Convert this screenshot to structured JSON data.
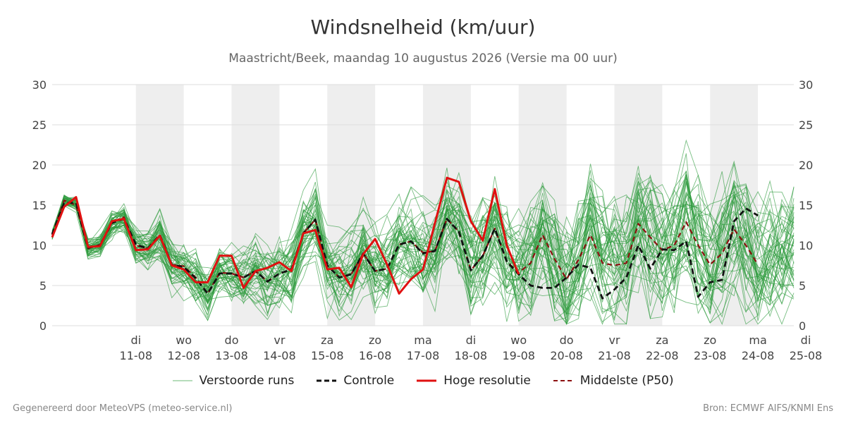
{
  "title": "Windsnelheid (km/uur)",
  "subtitle": "Maastricht/Beek, maandag 10 augustus 2026 (Versie ma 00 uur)",
  "footer_left": "Gegenereerd door MeteoVPS (meteo-service.nl)",
  "footer_right": "Bron: ECMWF AIFS/KNMI Ens",
  "legend": {
    "ensemble": "Verstoorde runs",
    "control": "Controle",
    "hires": "Hoge resolutie",
    "median": "Middelste (P50)"
  },
  "colors": {
    "ensemble": "#2e9b3e",
    "control": "#111111",
    "hires": "#e01010",
    "median": "#8b1010",
    "weekend_shade": "#eeeeee",
    "grid": "#dddddd"
  },
  "chart_data": {
    "type": "line",
    "title": "Windsnelheid (km/uur)",
    "ylim": [
      0,
      30
    ],
    "yticks": [
      0,
      5,
      10,
      15,
      20,
      25,
      30
    ],
    "x_unit": "days since 10-08-2026 00:00",
    "xlim": [
      -0.75,
      14.75
    ],
    "x_ticks": [
      {
        "day": "di",
        "date": "11-08"
      },
      {
        "day": "wo",
        "date": "12-08"
      },
      {
        "day": "do",
        "date": "13-08"
      },
      {
        "day": "vr",
        "date": "14-08"
      },
      {
        "day": "za",
        "date": "15-08"
      },
      {
        "day": "zo",
        "date": "16-08"
      },
      {
        "day": "ma",
        "date": "17-08"
      },
      {
        "day": "di",
        "date": "18-08"
      },
      {
        "day": "wo",
        "date": "19-08"
      },
      {
        "day": "do",
        "date": "20-08"
      },
      {
        "day": "vr",
        "date": "21-08"
      },
      {
        "day": "za",
        "date": "22-08"
      },
      {
        "day": "zo",
        "date": "23-08"
      },
      {
        "day": "ma",
        "date": "24-08"
      },
      {
        "day": "di",
        "date": "25-08"
      }
    ],
    "shaded_days": [
      {
        "from": "11-08",
        "to": "12-08"
      },
      {
        "from": "13-08",
        "to": "14-08"
      },
      {
        "from": "15-08",
        "to": "16-08"
      },
      {
        "from": "17-08",
        "to": "18-08"
      },
      {
        "from": "19-08",
        "to": "20-08"
      },
      {
        "from": "21-08",
        "to": "22-08"
      },
      {
        "from": "23-08",
        "to": "24-08"
      }
    ],
    "ensemble_member_count": 50,
    "series": [
      {
        "name": "Hoge resolutie",
        "style": "solid",
        "x": [
          -0.75,
          -0.5,
          -0.25,
          0,
          0.25,
          0.5,
          0.75,
          1,
          1.25,
          1.5,
          1.75,
          2,
          2.25,
          2.5,
          2.75,
          3,
          3.25,
          3.5,
          3.75,
          4,
          4.25,
          4.5,
          4.75,
          5,
          5.25,
          5.5,
          5.75,
          6,
          6.25,
          6.5,
          6.75,
          7,
          7.25,
          7.5,
          7.75,
          8,
          8.25,
          8.5,
          8.75,
          9,
          9.25,
          9.5,
          9.75,
          10
        ],
        "values": [
          11.0,
          14.8,
          16.0,
          9.8,
          9.9,
          13.0,
          13.3,
          9.4,
          9.5,
          11.2,
          7.5,
          7.0,
          5.4,
          5.4,
          8.7,
          8.7,
          4.7,
          6.8,
          7.2,
          7.9,
          6.8,
          11.5,
          11.9,
          7.0,
          7.2,
          4.8,
          8.9,
          10.8,
          7.6,
          4.0,
          5.8,
          7.0,
          12.8,
          18.4,
          17.9,
          13.0,
          10.6,
          17.0,
          10.0,
          6.4,
          null,
          null,
          null,
          null
        ]
      },
      {
        "name": "Middelste (P50)",
        "style": "dashed",
        "x": [
          -0.75,
          -0.5,
          -0.25,
          0,
          0.25,
          0.5,
          0.75,
          1,
          1.25,
          1.5,
          1.75,
          2,
          2.25,
          2.5,
          2.75,
          3,
          3.25,
          3.5,
          3.75,
          4,
          4.25,
          4.5,
          4.75,
          5,
          5.25,
          5.5,
          5.75,
          6,
          6.25,
          6.5,
          6.75,
          7,
          7.25,
          7.5,
          7.75,
          8,
          8.25,
          8.5,
          8.75,
          9,
          9.25,
          9.5,
          9.75,
          10,
          10.25,
          10.5,
          10.75,
          11,
          11.25,
          11.5,
          11.75,
          12,
          12.25,
          12.5,
          12.75,
          13,
          13.25,
          13.5,
          13.75,
          14
        ],
        "values": [
          11.3,
          15.6,
          15.0,
          9.6,
          10.1,
          12.9,
          13.5,
          10.0,
          9.6,
          11.2,
          7.6,
          7.4,
          6.0,
          4.0,
          6.6,
          6.5,
          6.0,
          6.8,
          5.5,
          6.5,
          7.0,
          11.5,
          13.2,
          7.5,
          6.0,
          6.4,
          9.0,
          6.8,
          7.1,
          10.1,
          10.5,
          9.1,
          9.3,
          13.3,
          11.7,
          6.9,
          8.7,
          12.1,
          8.0,
          6.6,
          7.8,
          11.3,
          8.3,
          5.8,
          8.2,
          11.3,
          7.8,
          7.5,
          7.8,
          12.7,
          11.0,
          9.4,
          10.0,
          12.9,
          10.0,
          7.6,
          9.0,
          12.0,
          10.0,
          7.6
        ]
      },
      {
        "name": "Controle",
        "style": "dashed",
        "x": [
          -0.75,
          -0.5,
          -0.25,
          0,
          0.25,
          0.5,
          0.75,
          1,
          1.25,
          1.5,
          1.75,
          2,
          2.25,
          2.5,
          2.75,
          3,
          3.25,
          3.5,
          3.75,
          4,
          4.25,
          4.5,
          4.75,
          5,
          5.25,
          5.5,
          5.75,
          6,
          6.25,
          6.5,
          6.75,
          7,
          7.25,
          7.5,
          7.75,
          8,
          8.25,
          8.5,
          8.75,
          9,
          9.25,
          9.5,
          9.75,
          10,
          10.25,
          10.5,
          10.75,
          11,
          11.25,
          11.5,
          11.75,
          12,
          12.25,
          12.5,
          12.75,
          13,
          13.25,
          13.5,
          13.75,
          14
        ],
        "values": [
          11.4,
          15.3,
          15.3,
          9.7,
          10.0,
          12.8,
          13.3,
          10.1,
          9.6,
          11.3,
          7.6,
          7.3,
          5.9,
          4.0,
          6.5,
          6.5,
          6.0,
          6.8,
          5.5,
          6.5,
          7.0,
          11.5,
          13.2,
          7.5,
          6.0,
          6.4,
          9.0,
          6.8,
          7.1,
          10.1,
          10.5,
          9.0,
          9.3,
          13.3,
          11.7,
          6.9,
          8.7,
          12.1,
          8.0,
          6.4,
          5.0,
          4.7,
          4.7,
          6.0,
          7.6,
          7.2,
          3.4,
          4.5,
          6.0,
          10.0,
          7.1,
          9.5,
          9.4,
          10.5,
          3.6,
          5.4,
          5.7,
          13.0,
          14.6,
          13.7
        ]
      }
    ]
  }
}
